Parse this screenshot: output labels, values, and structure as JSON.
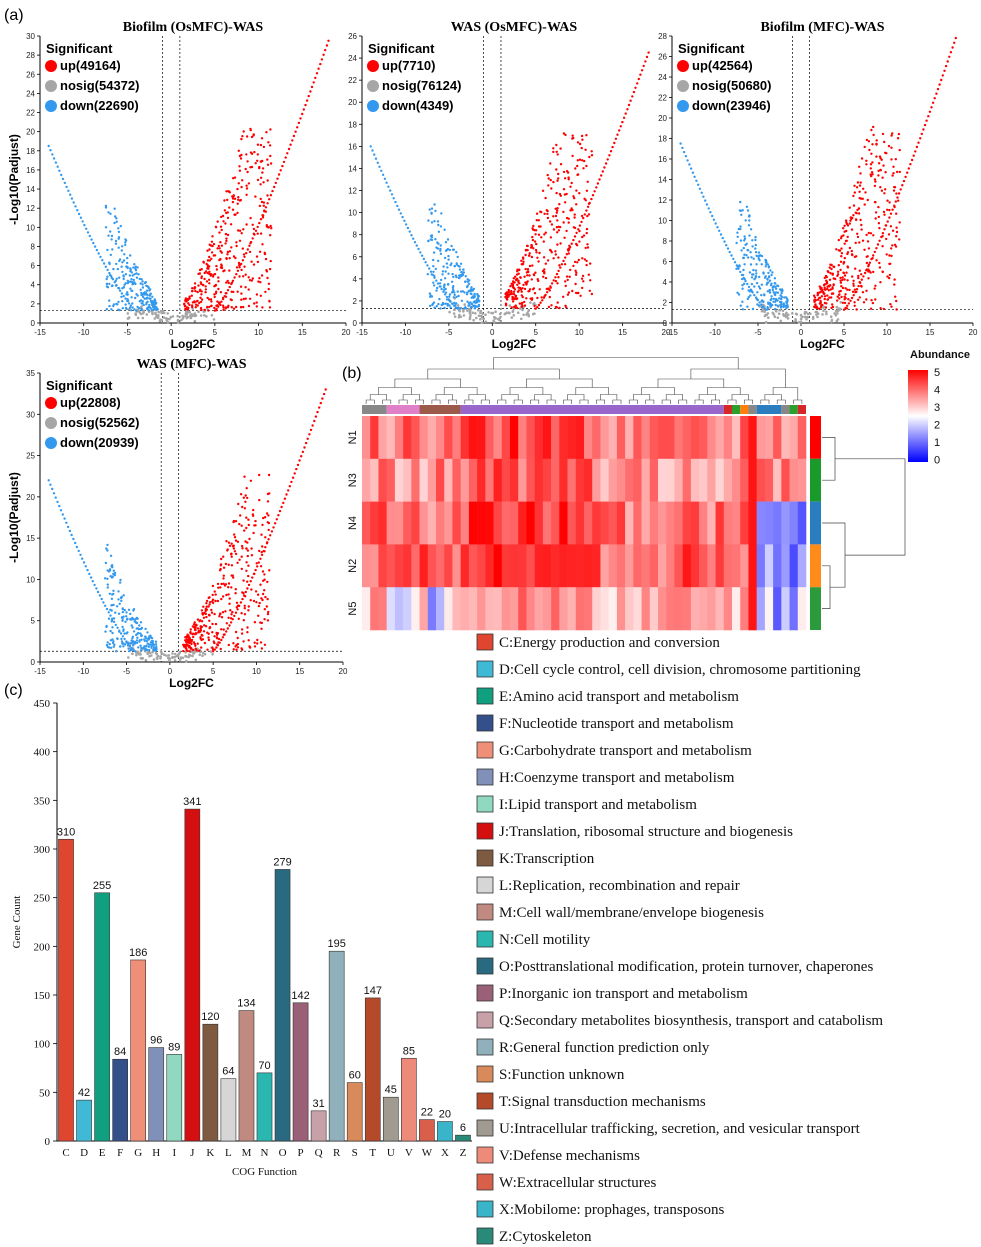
{
  "panel_labels": {
    "a": "(a)",
    "b": "(b)",
    "c": "(c)"
  },
  "volcano": {
    "legend_title": "Significant",
    "xlabel": "Log2FC",
    "ylabel": "-Log10(Padjust)",
    "colors": {
      "up": "#ff0000",
      "nosig": "#a6a6a6",
      "down": "#3399ee"
    },
    "plots": [
      {
        "title": "Biofilm (OsMFC)-WAS",
        "xlim": [
          -15,
          20
        ],
        "ylim": [
          0,
          30
        ],
        "xticks": [
          -15,
          -10,
          -5,
          0,
          5,
          10,
          15,
          20
        ],
        "yticks": [
          0,
          2,
          4,
          6,
          8,
          10,
          12,
          14,
          16,
          18,
          20,
          22,
          24,
          26,
          28,
          30
        ],
        "up": "up(49164)",
        "nosig": "nosig(54372)",
        "down": "down(22690)",
        "up_max": 29.5,
        "down_max": 18.5
      },
      {
        "title": "WAS (OsMFC)-WAS",
        "xlim": [
          -15,
          20
        ],
        "ylim": [
          0,
          26
        ],
        "xticks": [
          -15,
          -10,
          -5,
          0,
          5,
          10,
          15,
          20
        ],
        "yticks": [
          0,
          2,
          4,
          6,
          8,
          10,
          12,
          14,
          16,
          18,
          20,
          22,
          24,
          26
        ],
        "up": "up(7710)",
        "nosig": "nosig(76124)",
        "down": "down(4349)",
        "up_max": 24.5,
        "down_max": 16
      },
      {
        "title": "Biofilm (MFC)-WAS",
        "xlim": [
          -15,
          20
        ],
        "ylim": [
          0,
          28
        ],
        "xticks": [
          -15,
          -10,
          -5,
          0,
          5,
          10,
          15,
          20
        ],
        "yticks": [
          0,
          2,
          4,
          6,
          8,
          10,
          12,
          14,
          16,
          18,
          20,
          22,
          24,
          26,
          28
        ],
        "up": "up(42564)",
        "nosig": "nosig(50680)",
        "down": "down(23946)",
        "up_max": 27.8,
        "down_max": 17.5
      },
      {
        "title": "WAS (MFC)-WAS",
        "xlim": [
          -15,
          20
        ],
        "ylim": [
          0,
          35
        ],
        "xticks": [
          -15,
          -10,
          -5,
          0,
          5,
          10,
          15,
          20
        ],
        "yticks": [
          0,
          5,
          10,
          15,
          20,
          25,
          30,
          35
        ],
        "up": "up(22808)",
        "nosig": "nosig(52562)",
        "down": "down(20939)",
        "up_max": 33,
        "down_max": 22
      }
    ]
  },
  "heatmap": {
    "legend_title": "Abundance",
    "legend_ticks": [
      "5",
      "4",
      "3",
      "2",
      "1",
      "0"
    ],
    "rows": [
      "N1",
      "N3",
      "N4",
      "N2",
      "N5"
    ],
    "row_colors": [
      "#ff0000",
      "#1a9a2a",
      "#2a7ec0",
      "#ff8c1a",
      "#2a9a3a"
    ],
    "col_groups": [
      {
        "color": "#888888",
        "n": 3
      },
      {
        "color": "#e080c8",
        "n": 4
      },
      {
        "color": "#9b5a4a",
        "n": 5
      },
      {
        "color": "#9966cc",
        "n": 32
      },
      {
        "color": "#d62728",
        "n": 1
      },
      {
        "color": "#2ca02c",
        "n": 1
      },
      {
        "color": "#ff7f0e",
        "n": 1
      },
      {
        "color": "#888888",
        "n": 1
      },
      {
        "color": "#2a7ec0",
        "n": 3
      },
      {
        "color": "#888888",
        "n": 1
      },
      {
        "color": "#2ca02c",
        "n": 1
      },
      {
        "color": "#d62728",
        "n": 1
      }
    ]
  },
  "chart_data": {
    "type": "bar",
    "title": "",
    "xlabel": "COG Function",
    "ylabel": "Gene Count",
    "ylim": [
      0,
      450
    ],
    "yticks": [
      0,
      50,
      100,
      150,
      200,
      250,
      300,
      350,
      400,
      450
    ],
    "categories": [
      "C",
      "D",
      "E",
      "F",
      "G",
      "H",
      "I",
      "J",
      "K",
      "L",
      "M",
      "N",
      "O",
      "P",
      "Q",
      "R",
      "S",
      "T",
      "U",
      "V",
      "W",
      "X",
      "Z"
    ],
    "values": [
      310,
      42,
      255,
      84,
      186,
      96,
      89,
      341,
      120,
      64,
      134,
      70,
      279,
      142,
      31,
      195,
      60,
      147,
      45,
      85,
      22,
      20,
      6
    ],
    "colors": [
      "#e0452f",
      "#3fb9d6",
      "#10a080",
      "#34508a",
      "#f08f78",
      "#8090b8",
      "#90d8c0",
      "#d40f0f",
      "#7d5a40",
      "#d6d6d6",
      "#c08a80",
      "#2ab7b0",
      "#2a6a80",
      "#9a6078",
      "#c8a0a8",
      "#90b0bc",
      "#d88a5a",
      "#b54a2a",
      "#a09a90",
      "#ee8a7a",
      "#d8604a",
      "#3ab4c8",
      "#2a8a7a"
    ],
    "legend": [
      "C:Energy production and conversion",
      "D:Cell cycle control, cell division, chromosome partitioning",
      "E:Amino acid transport and metabolism",
      "F:Nucleotide transport and metabolism",
      "G:Carbohydrate transport and metabolism",
      "H:Coenzyme transport and metabolism",
      "I:Lipid transport and metabolism",
      "J:Translation, ribosomal structure and biogenesis",
      "K:Transcription",
      "L:Replication, recombination and repair",
      "M:Cell wall/membrane/envelope biogenesis",
      "N:Cell motility",
      "O:Posttranslational modification, protein turnover, chaperones",
      "P:Inorganic ion transport and metabolism",
      "Q:Secondary metabolites biosynthesis, transport and catabolism",
      "R:General function prediction only",
      "S:Function unknown",
      "T:Signal transduction mechanisms",
      "U:Intracellular trafficking, secretion, and vesicular transport",
      "V:Defense mechanisms",
      "W:Extracellular structures",
      "X:Mobilome: prophages, transposons",
      "Z:Cytoskeleton"
    ]
  }
}
